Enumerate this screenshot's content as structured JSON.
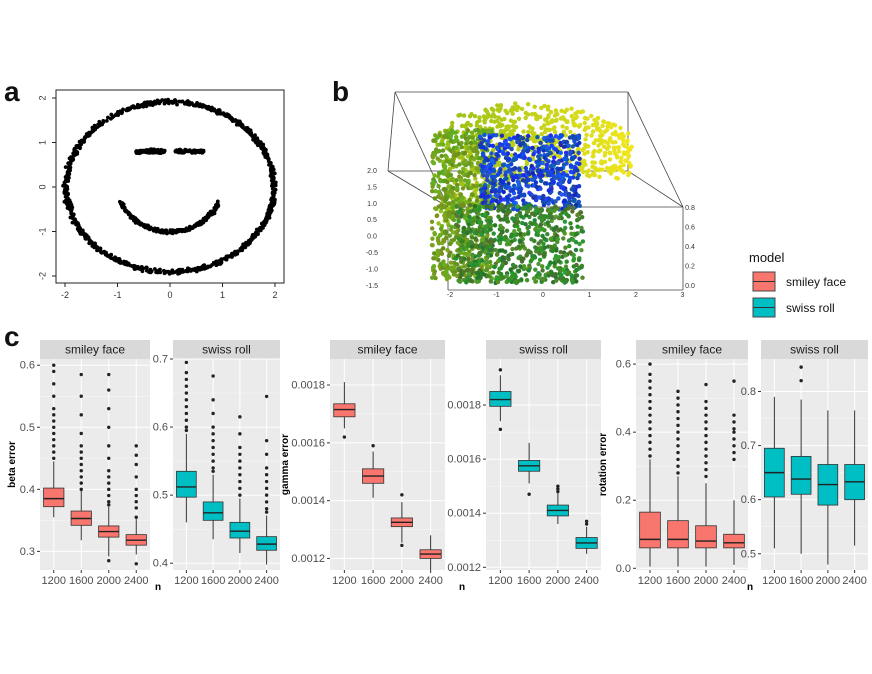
{
  "panels": {
    "a": "a",
    "b": "b",
    "c": "c"
  },
  "panel_a": {
    "x_ticks": [
      "-2",
      "-1",
      "0",
      "1",
      "2"
    ],
    "y_ticks": [
      "2",
      "1",
      "0",
      "-1",
      "-2"
    ]
  },
  "panel_b": {
    "z_ticks": [
      "2.0",
      "1.5",
      "1.0",
      "0.5",
      "0.0",
      "-0.5",
      "-1.0",
      "-1.5"
    ],
    "x_ticks": [
      "-2",
      "-1",
      "0",
      "1",
      "2",
      "3"
    ],
    "y_ticks": [
      "0.8",
      "0.6",
      "0.4",
      "0.2",
      "0.0"
    ]
  },
  "legend": {
    "title": "model",
    "items": [
      {
        "label": "smiley face",
        "color": "#F8766D"
      },
      {
        "label": "swiss roll",
        "color": "#00BFC4"
      }
    ]
  },
  "colors": {
    "smiley": "#F8766D",
    "swiss": "#00BFC4",
    "panel_bg": "#EBEBEB",
    "strip_bg": "#D9D9D9",
    "grid": "#FFFFFF"
  },
  "chart_data": [
    {
      "type": "scatter",
      "id": "smiley-scatter",
      "xlim": [
        -2,
        2
      ],
      "ylim": [
        -2,
        2
      ],
      "shapes": [
        "ring radius ~1.75",
        "eye bars at y=0.8 (x -0.65..-0.1 and 0.1..0.65)",
        "smile arc radius ~1 below center"
      ],
      "title": "",
      "xlabel": "",
      "ylabel": ""
    },
    {
      "type": "scatter",
      "id": "swiss-roll-3d",
      "xlim": [
        -2,
        3
      ],
      "ylim": [
        0,
        0.8
      ],
      "zlim": [
        -1.5,
        2.0
      ],
      "title": "",
      "xlabel": "",
      "ylabel": ""
    },
    {
      "type": "box",
      "id": "beta",
      "ylabel": "beta error",
      "xlabel": "n",
      "categories": [
        "1200",
        "1600",
        "2000",
        "2400"
      ],
      "facets": [
        {
          "strip": "smiley face",
          "model": "smiley face",
          "ylim": [
            0.27,
            0.61
          ],
          "ticks": [
            0.3,
            0.4,
            0.5,
            0.6
          ],
          "tick_labels": [
            "0.3",
            "0.4",
            "0.5",
            "0.6"
          ],
          "boxes": [
            {
              "n": "1200",
              "lo": 0.355,
              "q1": 0.372,
              "med": 0.385,
              "q3": 0.402,
              "hi": 0.445,
              "out": [
                0.45,
                0.46,
                0.47,
                0.48,
                0.49,
                0.5,
                0.51,
                0.52,
                0.53,
                0.55,
                0.57,
                0.59,
                0.6
              ]
            },
            {
              "n": "1600",
              "lo": 0.318,
              "q1": 0.342,
              "med": 0.353,
              "q3": 0.365,
              "hi": 0.398,
              "out": [
                0.4,
                0.41,
                0.42,
                0.43,
                0.44,
                0.45,
                0.46,
                0.47,
                0.49,
                0.52,
                0.55,
                0.585
              ]
            },
            {
              "n": "2000",
              "lo": 0.292,
              "q1": 0.323,
              "med": 0.332,
              "q3": 0.341,
              "hi": 0.372,
              "out": [
                0.285,
                0.375,
                0.38,
                0.39,
                0.4,
                0.41,
                0.42,
                0.43,
                0.45,
                0.47,
                0.5,
                0.53,
                0.56,
                0.585
              ]
            },
            {
              "n": "2400",
              "lo": 0.295,
              "q1": 0.31,
              "med": 0.318,
              "q3": 0.327,
              "hi": 0.352,
              "out": [
                0.28,
                0.355,
                0.37,
                0.38,
                0.39,
                0.4,
                0.42,
                0.44,
                0.455,
                0.47
              ]
            }
          ]
        },
        {
          "strip": "swiss roll",
          "model": "swiss roll",
          "ylim": [
            0.39,
            0.7
          ],
          "ticks": [
            0.4,
            0.5,
            0.6,
            0.7
          ],
          "tick_labels": [
            "0.4",
            "0.5",
            "0.6",
            "0.7"
          ],
          "boxes": [
            {
              "n": "1200",
              "lo": 0.46,
              "q1": 0.497,
              "med": 0.512,
              "q3": 0.535,
              "hi": 0.59,
              "out": [
                0.595,
                0.6,
                0.61,
                0.62,
                0.63,
                0.64,
                0.65,
                0.66,
                0.67,
                0.68,
                0.695
              ]
            },
            {
              "n": "1600",
              "lo": 0.435,
              "q1": 0.463,
              "med": 0.474,
              "q3": 0.49,
              "hi": 0.53,
              "out": [
                0.535,
                0.54,
                0.55,
                0.56,
                0.57,
                0.58,
                0.59,
                0.6,
                0.62,
                0.64,
                0.675
              ]
            },
            {
              "n": "2000",
              "lo": 0.415,
              "q1": 0.437,
              "med": 0.447,
              "q3": 0.46,
              "hi": 0.495,
              "out": [
                0.5,
                0.51,
                0.52,
                0.53,
                0.54,
                0.55,
                0.56,
                0.57,
                0.59,
                0.615
              ]
            },
            {
              "n": "2400",
              "lo": 0.398,
              "q1": 0.419,
              "med": 0.428,
              "q3": 0.439,
              "hi": 0.47,
              "out": [
                0.475,
                0.48,
                0.49,
                0.5,
                0.51,
                0.52,
                0.53,
                0.54,
                0.56,
                0.58,
                0.645
              ]
            }
          ]
        }
      ]
    },
    {
      "type": "box",
      "id": "gamma",
      "ylabel": "gamma error",
      "xlabel": "n",
      "categories": [
        "1200",
        "1600",
        "2000",
        "2400"
      ],
      "facets": [
        {
          "strip": "smiley face",
          "model": "smiley face",
          "ylim": [
            0.00116,
            0.00189
          ],
          "ticks": [
            0.0012,
            0.0014,
            0.0016,
            0.0018
          ],
          "tick_labels": [
            "0.0012",
            "0.0014",
            "0.0016",
            "0.0018"
          ],
          "boxes": [
            {
              "n": "1200",
              "lo": 0.00165,
              "q1": 0.00169,
              "med": 0.001715,
              "q3": 0.001735,
              "hi": 0.00181,
              "out": [
                0.00162
              ]
            },
            {
              "n": "1600",
              "lo": 0.00141,
              "q1": 0.00146,
              "med": 0.001485,
              "q3": 0.00151,
              "hi": 0.00157,
              "out": [
                0.00159
              ]
            },
            {
              "n": "2000",
              "lo": 0.001255,
              "q1": 0.00131,
              "med": 0.001325,
              "q3": 0.00134,
              "hi": 0.001395,
              "out": [
                0.00142,
                0.001245
              ]
            },
            {
              "n": "2400",
              "lo": 0.00116,
              "q1": 0.0012,
              "med": 0.001215,
              "q3": 0.00123,
              "hi": 0.00128,
              "out": []
            }
          ]
        },
        {
          "strip": "swiss roll",
          "model": "swiss roll",
          "ylim": [
            0.00119,
            0.00197
          ],
          "ticks": [
            0.0012,
            0.0014,
            0.0016,
            0.0018
          ],
          "tick_labels": [
            "0.0012",
            "0.0014",
            "0.0016",
            "0.0018"
          ],
          "boxes": [
            {
              "n": "1200",
              "lo": 0.00174,
              "q1": 0.001795,
              "med": 0.00182,
              "q3": 0.00185,
              "hi": 0.00191,
              "out": [
                0.00193,
                0.00171
              ]
            },
            {
              "n": "1600",
              "lo": 0.00151,
              "q1": 0.001555,
              "med": 0.001575,
              "q3": 0.001595,
              "hi": 0.00166,
              "out": [
                0.00147
              ]
            },
            {
              "n": "2000",
              "lo": 0.00136,
              "q1": 0.00139,
              "med": 0.00141,
              "q3": 0.00143,
              "hi": 0.001475,
              "out": [
                0.00148,
                0.00149,
                0.0015
              ]
            },
            {
              "n": "2400",
              "lo": 0.00125,
              "q1": 0.00127,
              "med": 0.00129,
              "q3": 0.00131,
              "hi": 0.00135,
              "out": [
                0.00136,
                0.00137
              ]
            }
          ]
        }
      ]
    },
    {
      "type": "box",
      "id": "rotation",
      "ylabel": "rotation error",
      "xlabel": "n",
      "categories": [
        "1200",
        "1600",
        "2000",
        "2400"
      ],
      "facets": [
        {
          "strip": "smiley face",
          "model": "smiley face",
          "ylim": [
            -0.005,
            0.615
          ],
          "ticks": [
            0.0,
            0.2,
            0.4,
            0.6
          ],
          "tick_labels": [
            "0.0",
            "0.2",
            "0.4",
            "0.6"
          ],
          "boxes": [
            {
              "n": "1200",
              "lo": 0.005,
              "q1": 0.06,
              "med": 0.085,
              "q3": 0.165,
              "hi": 0.32,
              "out": [
                0.33,
                0.35,
                0.37,
                0.39,
                0.41,
                0.43,
                0.45,
                0.47,
                0.49,
                0.51,
                0.53,
                0.55,
                0.57,
                0.6
              ]
            },
            {
              "n": "1600",
              "lo": 0.005,
              "q1": 0.06,
              "med": 0.085,
              "q3": 0.14,
              "hi": 0.27,
              "out": [
                0.28,
                0.3,
                0.32,
                0.34,
                0.36,
                0.38,
                0.4,
                0.42,
                0.44,
                0.46,
                0.48,
                0.5,
                0.52
              ]
            },
            {
              "n": "2000",
              "lo": 0.005,
              "q1": 0.06,
              "med": 0.08,
              "q3": 0.125,
              "hi": 0.25,
              "out": [
                0.27,
                0.29,
                0.31,
                0.33,
                0.35,
                0.37,
                0.39,
                0.41,
                0.43,
                0.45,
                0.47,
                0.49,
                0.54
              ]
            },
            {
              "n": "2400",
              "lo": 0.01,
              "q1": 0.06,
              "med": 0.075,
              "q3": 0.1,
              "hi": 0.2,
              "out": [
                0.32,
                0.34,
                0.36,
                0.38,
                0.4,
                0.41,
                0.43,
                0.45,
                0.55
              ]
            }
          ]
        },
        {
          "strip": "swiss roll",
          "model": "swiss roll",
          "ylim": [
            0.47,
            0.86
          ],
          "ticks": [
            0.5,
            0.6,
            0.7,
            0.8
          ],
          "tick_labels": [
            "0.5",
            "0.6",
            "0.7",
            "0.8"
          ],
          "boxes": [
            {
              "n": "1200",
              "lo": 0.51,
              "q1": 0.605,
              "med": 0.65,
              "q3": 0.695,
              "hi": 0.79,
              "out": []
            },
            {
              "n": "1600",
              "lo": 0.5,
              "q1": 0.61,
              "med": 0.638,
              "q3": 0.68,
              "hi": 0.785,
              "out": [
                0.82,
                0.845
              ]
            },
            {
              "n": "2000",
              "lo": 0.48,
              "q1": 0.59,
              "med": 0.628,
              "q3": 0.665,
              "hi": 0.765,
              "out": []
            },
            {
              "n": "2400",
              "lo": 0.515,
              "q1": 0.6,
              "med": 0.633,
              "q3": 0.665,
              "hi": 0.765,
              "out": []
            }
          ]
        }
      ]
    }
  ]
}
